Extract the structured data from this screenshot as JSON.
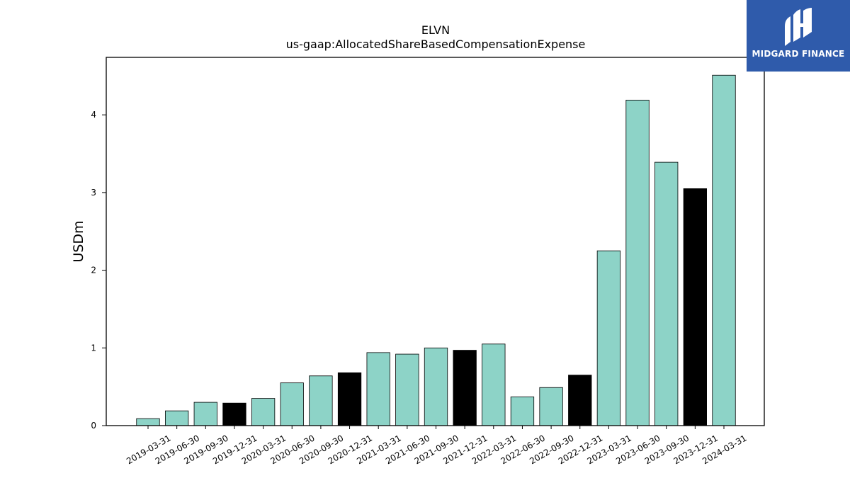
{
  "chart_data": {
    "type": "bar",
    "title": "ELVN",
    "subtitle": "us-gaap:AllocatedShareBasedCompensationExpense",
    "xlabel": "",
    "ylabel": "USDm",
    "ylim": [
      0,
      4.74
    ],
    "yticks": [
      0,
      1,
      2,
      3,
      4
    ],
    "grid": false,
    "categories": [
      "2019-03-31",
      "2019-06-30",
      "2019-09-30",
      "2019-12-31",
      "2020-03-31",
      "2020-06-30",
      "2020-09-30",
      "2020-12-31",
      "2021-03-31",
      "2021-06-30",
      "2021-09-30",
      "2021-12-31",
      "2022-03-31",
      "2022-06-30",
      "2022-09-30",
      "2022-12-31",
      "2023-03-31",
      "2023-06-30",
      "2023-09-30",
      "2023-12-31",
      "2024-03-31"
    ],
    "values": [
      0.09,
      0.19,
      0.3,
      0.29,
      0.35,
      0.55,
      0.64,
      0.68,
      0.94,
      0.92,
      1.0,
      0.97,
      1.05,
      0.37,
      0.49,
      0.65,
      2.25,
      4.19,
      3.39,
      3.05,
      4.51
    ],
    "bar_colors": [
      "#8dd3c7",
      "#8dd3c7",
      "#8dd3c7",
      "#000000",
      "#8dd3c7",
      "#8dd3c7",
      "#8dd3c7",
      "#000000",
      "#8dd3c7",
      "#8dd3c7",
      "#8dd3c7",
      "#000000",
      "#8dd3c7",
      "#8dd3c7",
      "#8dd3c7",
      "#000000",
      "#8dd3c7",
      "#8dd3c7",
      "#8dd3c7",
      "#000000",
      "#8dd3c7"
    ]
  },
  "logo": {
    "text": "MIDGARD FINANCE",
    "background": "#2f5bab",
    "icon": "midgard-logo-icon"
  }
}
